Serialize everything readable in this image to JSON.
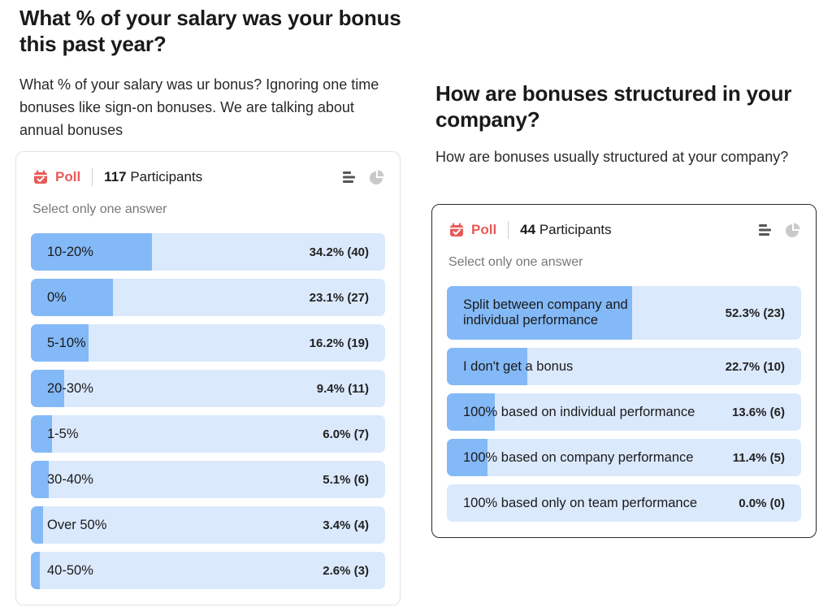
{
  "left_question": {
    "title": "What % of your salary was your bonus this past year?",
    "description": "What % of your salary was ur bonus? Ignoring one time bonuses like sign-on bonuses. We are talking about annual bonuses",
    "poll": {
      "label": "Poll",
      "participant_count": "117",
      "participant_word": "Participants",
      "hint": "Select only one answer",
      "options": [
        {
          "label": "10-20%",
          "result": "34.2% (40)",
          "fraction": 0.342
        },
        {
          "label": "0%",
          "result": "23.1% (27)",
          "fraction": 0.231
        },
        {
          "label": "5-10%",
          "result": "16.2% (19)",
          "fraction": 0.162
        },
        {
          "label": "20-30%",
          "result": "9.4% (11)",
          "fraction": 0.094
        },
        {
          "label": "1-5%",
          "result": "6.0% (7)",
          "fraction": 0.06
        },
        {
          "label": "30-40%",
          "result": "5.1% (6)",
          "fraction": 0.051
        },
        {
          "label": "Over 50%",
          "result": "3.4% (4)",
          "fraction": 0.034
        },
        {
          "label": "40-50%",
          "result": "2.6% (3)",
          "fraction": 0.026
        }
      ]
    }
  },
  "right_question": {
    "title": "How are bonuses structured in your company?",
    "description": "How are bonuses usually structured at your company?",
    "poll": {
      "label": "Poll",
      "participant_count": "44",
      "participant_word": "Participants",
      "hint": "Select only one answer",
      "options": [
        {
          "label": "Split between company and individual performance",
          "result": "52.3% (23)",
          "fraction": 0.523
        },
        {
          "label": "I don't get a bonus",
          "result": "22.7% (10)",
          "fraction": 0.227
        },
        {
          "label": "100% based on individual performance",
          "result": "13.6% (6)",
          "fraction": 0.136
        },
        {
          "label": "100% based on company performance",
          "result": "11.4% (5)",
          "fraction": 0.114
        },
        {
          "label": "100% based only on team performance",
          "result": "0.0% (0)",
          "fraction": 0.0
        }
      ]
    }
  },
  "icons": {
    "poll": "poll-calendar-icon",
    "bar_view": "bar-list-icon",
    "pie_view": "pie-chart-icon"
  },
  "colors": {
    "poll_red": "#e85a5a",
    "bar_fill": "#84b9f7",
    "bar_track": "#dbe9fd"
  }
}
